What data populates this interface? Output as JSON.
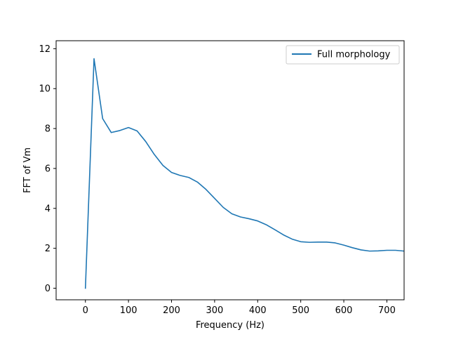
{
  "chart_data": {
    "type": "line",
    "xlabel": "Frequency (Hz)",
    "ylabel": "FFT of Vm",
    "xlim": [
      -68,
      740
    ],
    "ylim": [
      -0.58,
      12.4
    ],
    "xticks": [
      0,
      100,
      200,
      300,
      400,
      500,
      600,
      700
    ],
    "yticks": [
      0,
      2,
      4,
      6,
      8,
      10,
      12
    ],
    "grid": false,
    "legend_position": "top-right",
    "series": [
      {
        "name": "Full morphology",
        "color": "#1f77b4",
        "x": [
          0,
          20,
          40,
          60,
          80,
          100,
          120,
          140,
          160,
          180,
          200,
          220,
          240,
          260,
          280,
          300,
          320,
          340,
          360,
          380,
          400,
          420,
          440,
          460,
          480,
          500,
          520,
          540,
          560,
          580,
          600,
          620,
          640,
          660,
          680,
          700,
          720,
          740
        ],
        "y": [
          0,
          11.5,
          8.5,
          7.8,
          7.9,
          8.05,
          7.88,
          7.35,
          6.7,
          6.15,
          5.8,
          5.65,
          5.55,
          5.32,
          4.95,
          4.5,
          4.05,
          3.73,
          3.57,
          3.48,
          3.37,
          3.18,
          2.93,
          2.67,
          2.46,
          2.33,
          2.3,
          2.31,
          2.31,
          2.27,
          2.16,
          2.03,
          1.92,
          1.86,
          1.87,
          1.9,
          1.9,
          1.86
        ]
      }
    ]
  }
}
